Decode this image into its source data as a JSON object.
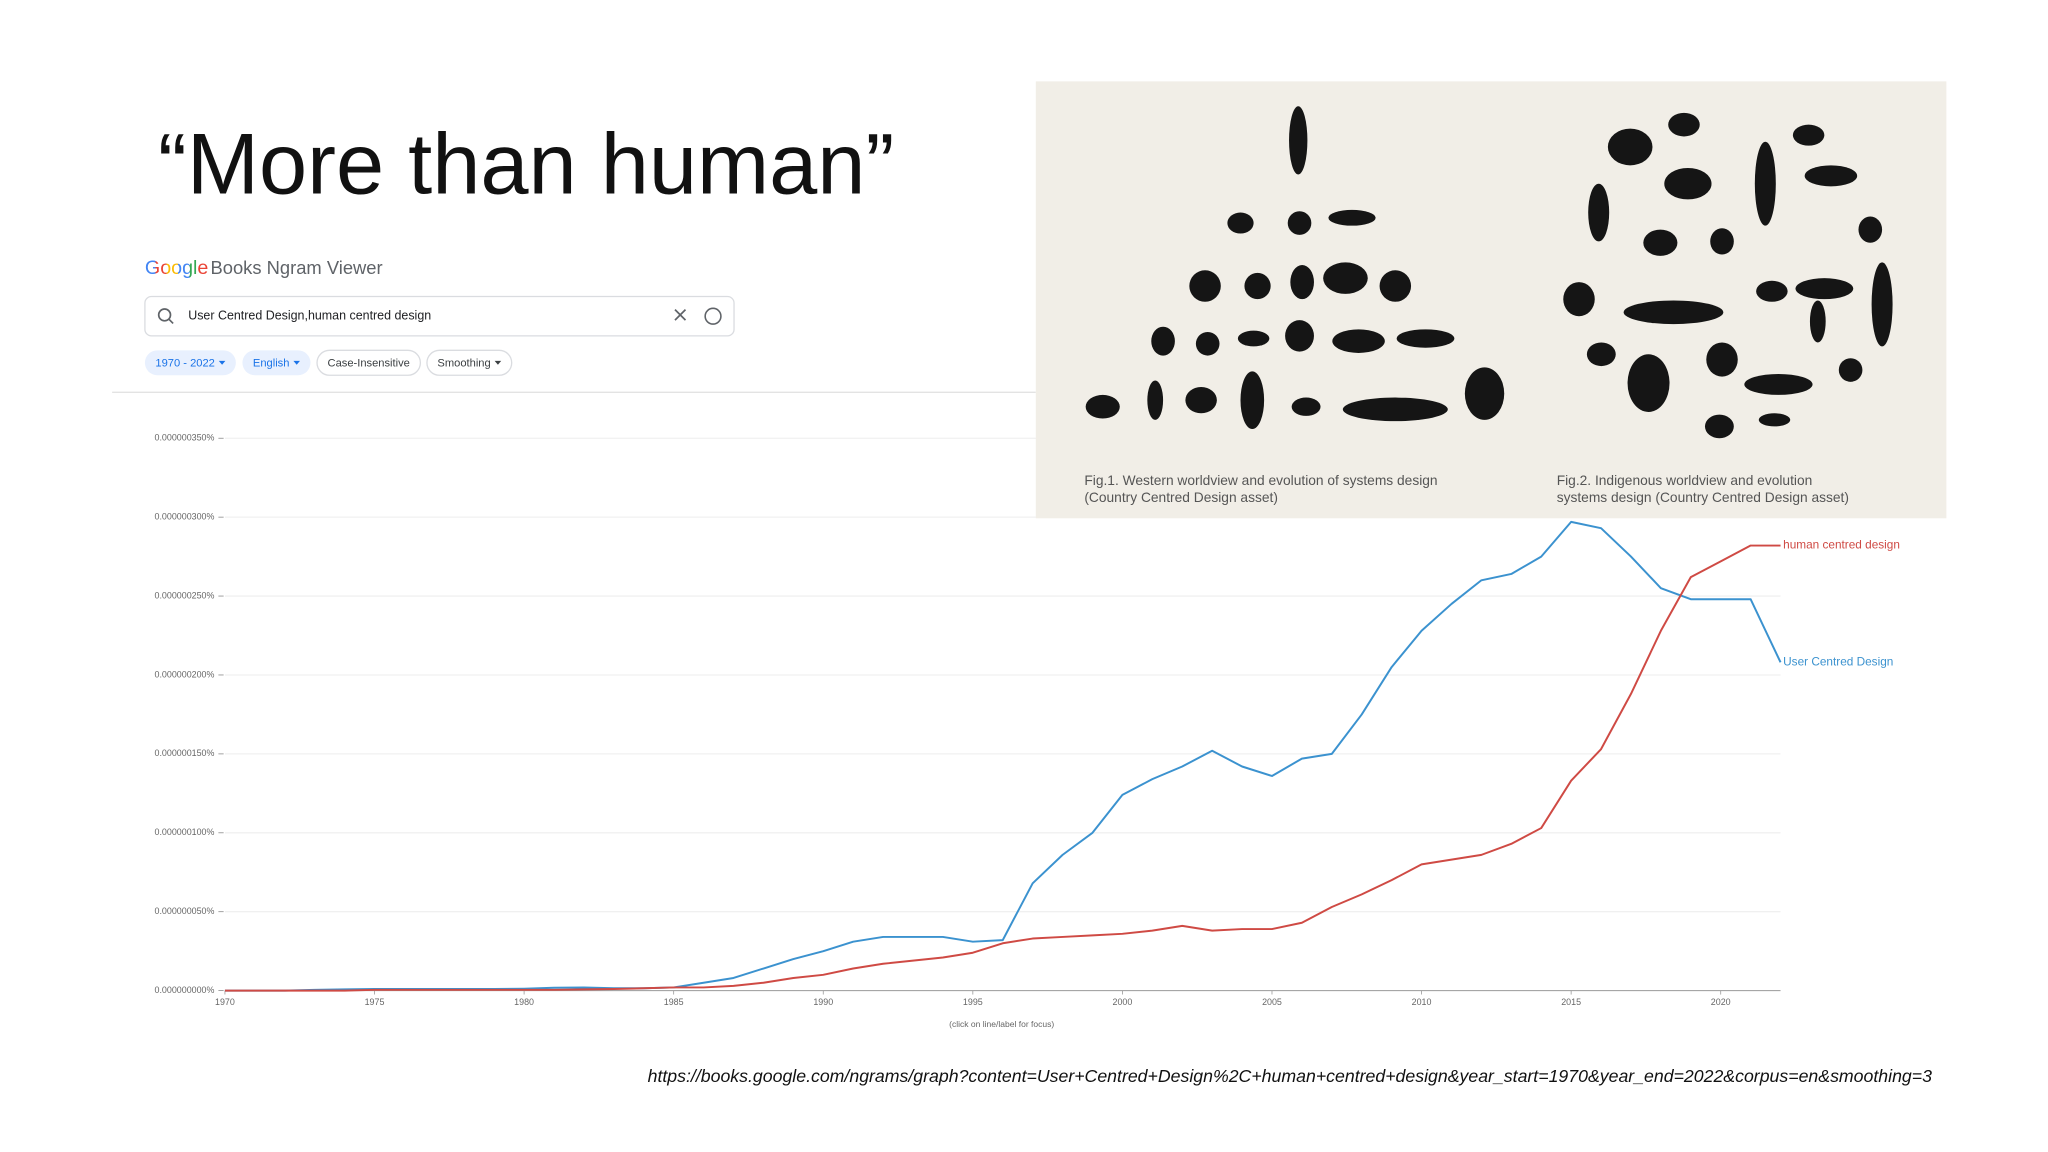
{
  "slide": {
    "title": "“More than human”",
    "url": "https://books.google.com/ngrams/graph?content=User+Centred+Design%2C+human+centred+design&year_start=1970&year_end=2022&corpus=en&smoothing=3"
  },
  "ngram": {
    "logo": "Google",
    "product": "Books Ngram Viewer",
    "query": "User Centred Design,human centred design",
    "chips": [
      "1970 - 2022",
      "English",
      "Case-Insensitive",
      "Smoothing"
    ],
    "hint": "(click on line/label for focus)"
  },
  "figure": {
    "captions": [
      [
        "Fig.1. Western worldview and evolution of systems design",
        "(Country Centred Design asset)"
      ],
      [
        "Fig.2. Indigenous worldview and evolution",
        "systems design (Country Centred Design asset)"
      ]
    ]
  },
  "chart_data": {
    "type": "line",
    "x": [
      1970,
      1971,
      1972,
      1973,
      1974,
      1975,
      1976,
      1977,
      1978,
      1979,
      1980,
      1981,
      1982,
      1983,
      1984,
      1985,
      1986,
      1987,
      1988,
      1989,
      1990,
      1991,
      1992,
      1993,
      1994,
      1995,
      1996,
      1997,
      1998,
      1999,
      2000,
      2001,
      2002,
      2003,
      2004,
      2005,
      2006,
      2007,
      2008,
      2009,
      2010,
      2011,
      2012,
      2013,
      2014,
      2015,
      2016,
      2017,
      2018,
      2019,
      2020,
      2021,
      2022
    ],
    "series": [
      {
        "name": "User Centred Design",
        "color": "#3b92cf",
        "values": [
          0,
          0,
          0,
          5e-10,
          8e-10,
          1e-09,
          1e-09,
          1e-09,
          1e-09,
          1e-09,
          1.2e-09,
          1.8e-09,
          2e-09,
          1.5e-09,
          1.5e-09,
          2e-09,
          5e-09,
          8e-09,
          1.4e-08,
          2e-08,
          2.5e-08,
          3.1e-08,
          3.4e-08,
          3.4e-08,
          3.4e-08,
          3.1e-08,
          3.2e-08,
          6.8e-08,
          8.6e-08,
          1e-07,
          1.24e-07,
          1.34e-07,
          1.42e-07,
          1.52e-07,
          1.42e-07,
          1.36e-07,
          1.47e-07,
          1.5e-07,
          1.75e-07,
          2.05e-07,
          2.28e-07,
          2.45e-07,
          2.6e-07,
          2.64e-07,
          2.75e-07,
          2.97e-07,
          2.93e-07,
          2.75e-07,
          2.55e-07,
          2.48e-07,
          2.48e-07,
          2.48e-07,
          2.08e-07
        ]
      },
      {
        "name": "human centred design",
        "color": "#cf4a44",
        "values": [
          0,
          0,
          0,
          0,
          0,
          5e-10,
          5e-10,
          5e-10,
          5e-10,
          5e-10,
          5e-10,
          5e-10,
          8e-10,
          1e-09,
          1.5e-09,
          2e-09,
          2e-09,
          3e-09,
          5e-09,
          8e-09,
          1e-08,
          1.4e-08,
          1.7e-08,
          1.9e-08,
          2.1e-08,
          2.4e-08,
          3e-08,
          3.3e-08,
          3.4e-08,
          3.5e-08,
          3.6e-08,
          3.8e-08,
          4.1e-08,
          3.8e-08,
          3.9e-08,
          3.9e-08,
          4.3e-08,
          5.3e-08,
          6.1e-08,
          7e-08,
          8e-08,
          8.3e-08,
          8.6e-08,
          9.3e-08,
          1.03e-07,
          1.33e-07,
          1.53e-07,
          1.88e-07,
          2.28e-07,
          2.62e-07,
          2.72e-07,
          2.82e-07,
          2.82e-07
        ]
      }
    ],
    "xlim": [
      1970,
      2022
    ],
    "xticks": [
      1970,
      1975,
      1980,
      1985,
      1990,
      1995,
      2000,
      2005,
      2010,
      2015,
      2020
    ],
    "ylim": [
      0,
      3.5e-07
    ],
    "yticks": [
      {
        "value": 0,
        "label": "0.000000000%"
      },
      {
        "value": 5e-08,
        "label": "0.000000050%"
      },
      {
        "value": 1e-07,
        "label": "0.000000100%"
      },
      {
        "value": 1.5e-07,
        "label": "0.000000150%"
      },
      {
        "value": 2e-07,
        "label": "0.000000200%"
      },
      {
        "value": 2.5e-07,
        "label": "0.000000250%"
      },
      {
        "value": 3e-07,
        "label": "0.000000300%"
      },
      {
        "value": 3.5e-07,
        "label": "0.000000350%"
      }
    ],
    "grid": true
  }
}
